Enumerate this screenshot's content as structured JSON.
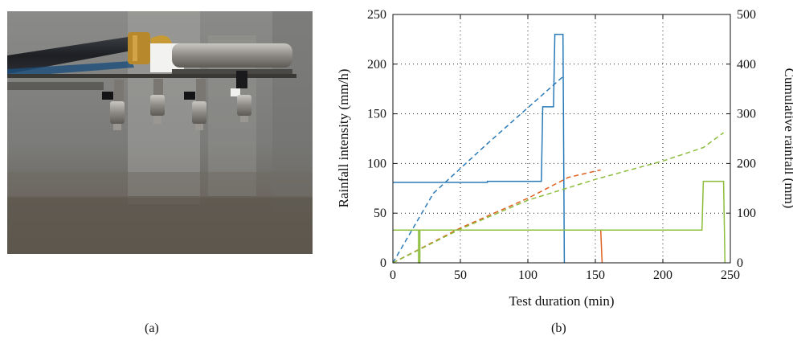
{
  "captions": {
    "a": "(a)",
    "b": "(b)"
  },
  "photo": {
    "subject": "rainfall-simulator-nozzles-photo",
    "colors": {
      "background": "#7c7c7a",
      "pipe": "#2a2c30",
      "brass": "#b8892c",
      "soil": "#5e584f"
    }
  },
  "chart_data": {
    "type": "line",
    "xlabel": "Test duration (min)",
    "ylabel": "Rainfall intensity (mm/h)",
    "y2label": "Cumulative rainfall (mm)",
    "xlim": [
      0,
      250
    ],
    "ylim": [
      0,
      250
    ],
    "y2lim": [
      0,
      500
    ],
    "xticks": [
      0,
      50,
      100,
      150,
      200,
      250
    ],
    "yticks": [
      0,
      50,
      100,
      150,
      200,
      250
    ],
    "y2ticks": [
      0,
      100,
      200,
      300,
      400,
      500
    ],
    "grid": true,
    "series": [
      {
        "color": "#2a7ab8",
        "style": "solid",
        "axis": "left",
        "points": [
          [
            0,
            81
          ],
          [
            70,
            81
          ],
          [
            70,
            82
          ],
          [
            110,
            82
          ],
          [
            111,
            157
          ],
          [
            119,
            157
          ],
          [
            120,
            230
          ],
          [
            126,
            230
          ],
          [
            127,
            0
          ]
        ]
      },
      {
        "color": "#2a7ab8",
        "style": "dashed",
        "axis": "right",
        "points": [
          [
            0,
            0
          ],
          [
            30,
            140
          ],
          [
            70,
            240
          ],
          [
            126,
            375
          ]
        ]
      },
      {
        "color": "#e0601f",
        "style": "solid",
        "axis": "left",
        "points": [
          [
            0,
            33
          ],
          [
            154,
            33
          ],
          [
            155,
            0
          ]
        ]
      },
      {
        "color": "#e0601f",
        "style": "dashed",
        "axis": "right",
        "points": [
          [
            0,
            0
          ],
          [
            50,
            70
          ],
          [
            100,
            130
          ],
          [
            130,
            172
          ],
          [
            154,
            187
          ]
        ]
      },
      {
        "color": "#8cbd3c",
        "style": "solid",
        "axis": "left",
        "points": [
          [
            0,
            33
          ],
          [
            19,
            33
          ],
          [
            19,
            0
          ],
          [
            20,
            0
          ],
          [
            20,
            33
          ],
          [
            229,
            33
          ],
          [
            230,
            82
          ],
          [
            245,
            82
          ],
          [
            246,
            0
          ]
        ]
      },
      {
        "color": "#8cbd3c",
        "style": "dashed",
        "axis": "right",
        "points": [
          [
            0,
            0
          ],
          [
            50,
            68
          ],
          [
            100,
            126
          ],
          [
            150,
            168
          ],
          [
            200,
            205
          ],
          [
            230,
            232
          ],
          [
            245,
            262
          ]
        ]
      }
    ]
  }
}
